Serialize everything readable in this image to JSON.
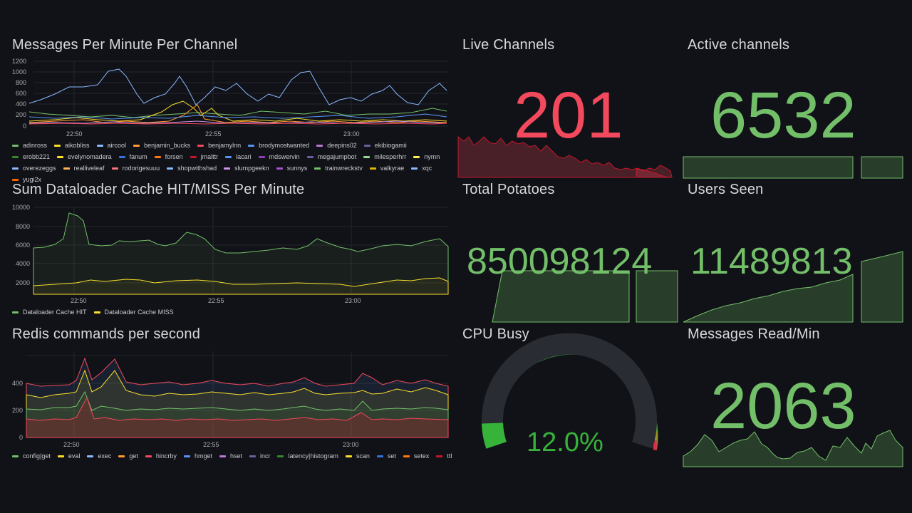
{
  "colors": {
    "bg": "#111217",
    "grid": "#24262c",
    "green": "#73bf69",
    "red": "#f2495c",
    "yellow": "#fade2a",
    "blue": "#8ab8ff",
    "orange": "#ff9830",
    "purple": "#ca95e5"
  },
  "panels": {
    "messages": {
      "title": "Messages Per Minute Per Channel",
      "y_ticks": [
        "1200",
        "1000",
        "800",
        "600",
        "400",
        "200",
        "0"
      ],
      "x_ticks": [
        "22:50",
        "22:55",
        "23:00"
      ],
      "legend": [
        {
          "label": "adinross",
          "color": "#73bf69"
        },
        {
          "label": "aikobliss",
          "color": "#fade2a"
        },
        {
          "label": "aircool",
          "color": "#8ab8ff"
        },
        {
          "label": "benjamin_bucks",
          "color": "#ff9830"
        },
        {
          "label": "benjamylnn",
          "color": "#f2495c"
        },
        {
          "label": "brodymostwanted",
          "color": "#5794f2"
        },
        {
          "label": "deepins02",
          "color": "#b877d9"
        },
        {
          "label": "ekibiogamii",
          "color": "#705da0"
        },
        {
          "label": "erobb221",
          "color": "#37872d"
        },
        {
          "label": "evelynomadera",
          "color": "#fade2a"
        },
        {
          "label": "fanum",
          "color": "#3274d9"
        },
        {
          "label": "forsen",
          "color": "#ff780a"
        },
        {
          "label": "jmalttr",
          "color": "#c4162a"
        },
        {
          "label": "lacari",
          "color": "#5794f2"
        },
        {
          "label": "mdswervin",
          "color": "#8f3bb8"
        },
        {
          "label": "megajumpbot",
          "color": "#705da0"
        },
        {
          "label": "milesperhrr",
          "color": "#96d98d"
        },
        {
          "label": "nymn",
          "color": "#ffee52"
        },
        {
          "label": "overezeggs",
          "color": "#8ab8ff"
        },
        {
          "label": "realliveleaf",
          "color": "#ffb357"
        },
        {
          "label": "rodorigesuuu",
          "color": "#ff7383"
        },
        {
          "label": "shopwithshad",
          "color": "#8ab8ff"
        },
        {
          "label": "slumpgeekn",
          "color": "#ca95e5"
        },
        {
          "label": "sunnys",
          "color": "#a352cc"
        },
        {
          "label": "trainwreckstv",
          "color": "#73bf69"
        },
        {
          "label": "valkyrae",
          "color": "#e0b400"
        },
        {
          "label": "xqc",
          "color": "#8ab8ff"
        },
        {
          "label": "yugi2x",
          "color": "#fa6400"
        }
      ]
    },
    "dataloader": {
      "title": "Sum Dataloader Cache HIT/MISS Per Minute",
      "y_ticks": [
        "10000",
        "8000",
        "6000",
        "4000",
        "2000"
      ],
      "x_ticks": [
        "22:50",
        "22:55",
        "23:00"
      ],
      "legend": [
        {
          "label": "Dataloader Cache HIT",
          "color": "#73bf69"
        },
        {
          "label": "Dataloader Cache MISS",
          "color": "#fade2a"
        }
      ]
    },
    "redis": {
      "title": "Redis commands per second",
      "y_ticks": [
        "400",
        "200",
        "0"
      ],
      "x_ticks": [
        "22:50",
        "22:55",
        "23:00"
      ],
      "legend": [
        {
          "label": "config|get",
          "color": "#73bf69"
        },
        {
          "label": "eval",
          "color": "#fade2a"
        },
        {
          "label": "exec",
          "color": "#8ab8ff"
        },
        {
          "label": "get",
          "color": "#ff9830"
        },
        {
          "label": "hincrby",
          "color": "#f2495c"
        },
        {
          "label": "hmget",
          "color": "#5794f2"
        },
        {
          "label": "hset",
          "color": "#b877d9"
        },
        {
          "label": "incr",
          "color": "#705da0"
        },
        {
          "label": "latency|histogram",
          "color": "#37872d"
        },
        {
          "label": "scan",
          "color": "#fade2a"
        },
        {
          "label": "set",
          "color": "#3274d9"
        },
        {
          "label": "setex",
          "color": "#ff780a"
        },
        {
          "label": "ttl",
          "color": "#c4162a"
        }
      ]
    },
    "live_channels": {
      "title": "Live Channels",
      "value": "201",
      "color": "#f2495c"
    },
    "active_channels": {
      "title": "Active channels",
      "value": "6532",
      "color": "#73bf69"
    },
    "total_potatoes": {
      "title": "Total Potatoes",
      "value": "850098124",
      "color": "#73bf69"
    },
    "users_seen": {
      "title": "Users Seen",
      "value": "11489813",
      "color": "#73bf69"
    },
    "cpu_busy": {
      "title": "CPU Busy",
      "value": "12.0%",
      "percent": 12.0,
      "color": "#37b33a"
    },
    "messages_read": {
      "title": "Messages Read/Min",
      "value": "2063",
      "color": "#73bf69"
    }
  }
}
